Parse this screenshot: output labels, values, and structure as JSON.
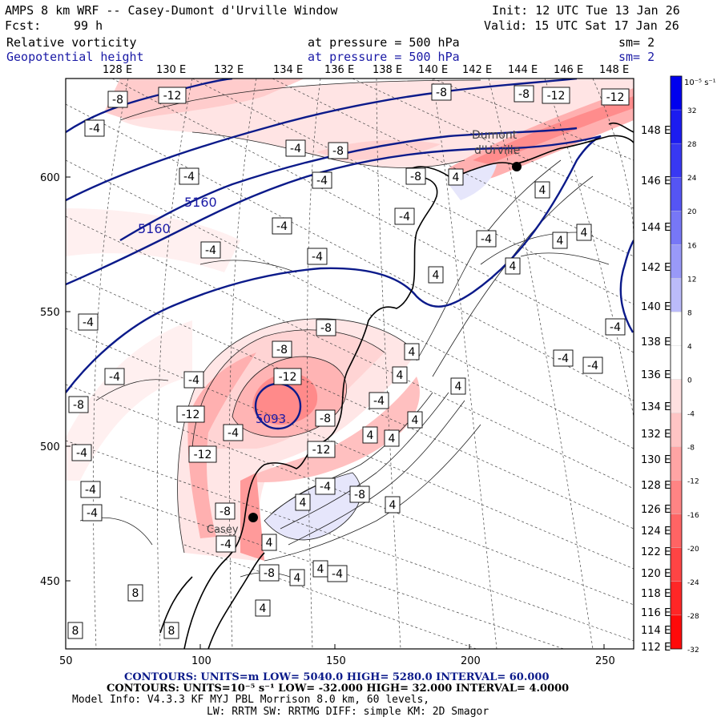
{
  "header": {
    "title": "AMPS 8 km WRF -- Casey-Dumont d'Urville Window",
    "init": "Init: 12 UTC Tue 13 Jan 26",
    "fcst_label": "Fcst:",
    "fcst_hours": "99 h",
    "valid": "Valid: 15 UTC Sat 17 Jan 26",
    "field1_name": "Relative vorticity",
    "field1_level": "at pressure =  500 hPa",
    "field1_sm": "sm= 2",
    "field2_name": "Geopotential height",
    "field2_level": "at pressure =  500 hPa",
    "field2_sm": "sm= 2"
  },
  "colors": {
    "height_contour": "#0b1a8a",
    "vort_neg_strong": "#ff2020",
    "vort_pos": "#3a3aff",
    "coast": "#000000"
  },
  "top_longitudes": [
    "128 E",
    "130 E",
    "132 E",
    "134 E",
    "136 E",
    "138 E",
    "140 E",
    "142 E",
    "144 E",
    "146 E",
    "148 E"
  ],
  "right_longitudes": [
    "148 E",
    "146 E",
    "144 E",
    "142 E",
    "140 E",
    "138 E",
    "136 E",
    "134 E",
    "132 E",
    "130 E",
    "128 E",
    "126 E",
    "124 E",
    "122 E",
    "120 E",
    "118 E",
    "116 E",
    "114 E",
    "112 E"
  ],
  "x_ticks": [
    "50",
    "100",
    "150",
    "200",
    "250"
  ],
  "y_ticks": [
    "600",
    "550",
    "500",
    "450"
  ],
  "colorbar": {
    "units": "10⁻⁵ s⁻¹",
    "labels": [
      "32",
      "28",
      "24",
      "20",
      "16",
      "12",
      "8",
      "4",
      "0",
      "-4",
      "-8",
      "-12",
      "-16",
      "-20",
      "-24",
      "-28",
      "-32"
    ],
    "colors": [
      "#0000ee",
      "#1c1cf0",
      "#3838f2",
      "#5555f4",
      "#7777f6",
      "#9999f8",
      "#bbbbfa",
      "#ffffff",
      "#ffffff",
      "#ffe0e0",
      "#ffc4c4",
      "#ffa4a4",
      "#ff8484",
      "#ff6464",
      "#ff4444",
      "#ff2626",
      "#ff0a0a"
    ]
  },
  "map_labels": {
    "contour_5160_a": "5160",
    "contour_5160_b": "5160",
    "low_value": "5093",
    "dumont": "Dumont",
    "durville": "d'Urville",
    "casey": "Casey",
    "vort_boxes": [
      "-8",
      "-12",
      "-4",
      "-4",
      "-8",
      "-4",
      "-4",
      "-8",
      "-12",
      "-4",
      "-4",
      "-4",
      "-8",
      "-4",
      "-8",
      "-12",
      "-4",
      "-4",
      "-4",
      "-8",
      "-8",
      "-12",
      "-12",
      "-4",
      "-12",
      "-8",
      "-4",
      "-4",
      "-4",
      "-8",
      "-4",
      "-4",
      "-4",
      "4",
      "4",
      "4",
      "4",
      "4",
      "4",
      "4",
      "4",
      "4",
      "4",
      "4",
      "4",
      "4",
      "4",
      "4",
      "8",
      "8",
      "8",
      "-4",
      "-4",
      "-4",
      "-8",
      "-8",
      "-4",
      "-4",
      "4",
      "4",
      "4",
      "-12",
      "-8"
    ]
  },
  "footer": {
    "line1_a": "CONTOURS:  UNITS=m  LOW=  5040.0       HIGH=  5280.0       INTERVAL=  60.000",
    "line2_a": "CONTOURS:  UNITS=10⁻⁵ s⁻¹  LOW= -32.000       HIGH=  32.000       INTERVAL=  4.0000",
    "line3": "Model Info: V4.3.3    KF      MYJ PBL  Morrison            8.0 km,  60 levels,",
    "line4": "LW: RRTM SW: RRTMG   DIFF: simple KM: 2D Smagor"
  }
}
